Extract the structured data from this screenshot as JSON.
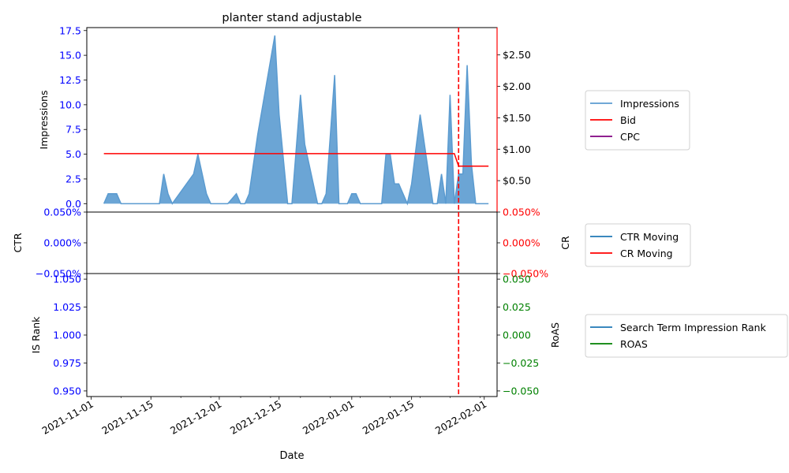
{
  "chart_data": [
    {
      "type": "area",
      "title": "planter stand adjustable",
      "xlabel": "Date",
      "ylabel": "Impressions",
      "ylabel_right": "",
      "xlim": [
        "2021-10-31",
        "2022-02-04"
      ],
      "ylim": [
        -0.85,
        17.8
      ],
      "ylim_right": [
        0,
        2.935
      ],
      "yticks": [
        {
          "value": 0,
          "label": "0.0"
        },
        {
          "value": 2.5,
          "label": "2.5"
        },
        {
          "value": 5,
          "label": "5.0"
        },
        {
          "value": 7.5,
          "label": "7.5"
        },
        {
          "value": 10,
          "label": "10.0"
        },
        {
          "value": 12.5,
          "label": "12.5"
        },
        {
          "value": 15,
          "label": "15.0"
        },
        {
          "value": 17.5,
          "label": "17.5"
        }
      ],
      "yticks_right": [
        {
          "value": 0.5,
          "label": "$0.50"
        },
        {
          "value": 1.0,
          "label": "$1.00"
        },
        {
          "value": 1.5,
          "label": "$1.50"
        },
        {
          "value": 2.0,
          "label": "$2.00"
        },
        {
          "value": 2.5,
          "label": "$2.50"
        }
      ],
      "series": [
        {
          "name": "Impressions",
          "color": "#5b9bd0",
          "axis": "left",
          "points": [
            [
              "2021-11-04",
              0
            ],
            [
              "2021-11-05",
              1
            ],
            [
              "2021-11-06",
              1
            ],
            [
              "2021-11-07",
              1
            ],
            [
              "2021-11-08",
              0
            ],
            [
              "2021-11-09",
              0
            ],
            [
              "2021-11-10",
              0
            ],
            [
              "2021-11-11",
              0
            ],
            [
              "2021-11-12",
              0
            ],
            [
              "2021-11-13",
              0
            ],
            [
              "2021-11-14",
              0
            ],
            [
              "2021-11-15",
              0
            ],
            [
              "2021-11-16",
              0
            ],
            [
              "2021-11-17",
              0
            ],
            [
              "2021-11-18",
              3
            ],
            [
              "2021-11-19",
              1
            ],
            [
              "2021-11-20",
              0
            ],
            [
              "2021-11-25",
              3
            ],
            [
              "2021-11-26",
              5
            ],
            [
              "2021-11-27",
              3
            ],
            [
              "2021-11-28",
              1
            ],
            [
              "2021-11-29",
              0
            ],
            [
              "2021-11-30",
              0
            ],
            [
              "2021-12-01",
              0
            ],
            [
              "2021-12-02",
              0
            ],
            [
              "2021-12-03",
              0
            ],
            [
              "2021-12-05",
              1
            ],
            [
              "2021-12-06",
              0
            ],
            [
              "2021-12-07",
              0
            ],
            [
              "2021-12-08",
              1
            ],
            [
              "2021-12-10",
              7
            ],
            [
              "2021-12-14",
              17
            ],
            [
              "2021-12-15",
              9
            ],
            [
              "2021-12-17",
              0
            ],
            [
              "2021-12-18",
              0
            ],
            [
              "2021-12-20",
              11
            ],
            [
              "2021-12-21",
              6
            ],
            [
              "2021-12-24",
              0
            ],
            [
              "2021-12-25",
              0
            ],
            [
              "2021-12-26",
              1
            ],
            [
              "2021-12-28",
              13
            ],
            [
              "2021-12-29",
              0
            ],
            [
              "2021-12-30",
              0
            ],
            [
              "2021-12-31",
              0
            ],
            [
              "2022-01-01",
              1
            ],
            [
              "2022-01-02",
              1
            ],
            [
              "2022-01-03",
              0
            ],
            [
              "2022-01-04",
              0
            ],
            [
              "2022-01-05",
              0
            ],
            [
              "2022-01-06",
              0
            ],
            [
              "2022-01-07",
              0
            ],
            [
              "2022-01-08",
              0
            ],
            [
              "2022-01-09",
              5
            ],
            [
              "2022-01-10",
              5
            ],
            [
              "2022-01-11",
              2
            ],
            [
              "2022-01-12",
              2
            ],
            [
              "2022-01-14",
              0
            ],
            [
              "2022-01-15",
              2
            ],
            [
              "2022-01-17",
              9
            ],
            [
              "2022-01-20",
              0
            ],
            [
              "2022-01-21",
              0
            ],
            [
              "2022-01-22",
              3
            ],
            [
              "2022-01-23",
              0
            ],
            [
              "2022-01-24",
              11
            ],
            [
              "2022-01-25",
              0
            ],
            [
              "2022-01-26",
              3
            ],
            [
              "2022-01-27",
              3
            ],
            [
              "2022-01-28",
              14
            ],
            [
              "2022-01-29",
              4
            ],
            [
              "2022-01-30",
              0
            ],
            [
              "2022-01-31",
              0
            ],
            [
              "2022-02-01",
              0
            ],
            [
              "2022-02-02",
              0
            ]
          ]
        },
        {
          "name": "Bid",
          "color": "#ff0000",
          "axis": "right",
          "points": [
            [
              "2021-11-04",
              0.93
            ],
            [
              "2022-01-25",
              0.93
            ],
            [
              "2022-01-26",
              0.73
            ],
            [
              "2022-02-02",
              0.73
            ]
          ]
        },
        {
          "name": "CPC",
          "color": "#800080",
          "axis": "right",
          "points": []
        }
      ],
      "vline": {
        "x": "2022-01-26",
        "color": "#ff0000",
        "style": "dashed"
      },
      "legend_placement": "outside-right"
    },
    {
      "type": "line",
      "title": "",
      "ylabel": "CTR",
      "ylabel_right": "CR",
      "ylim": [
        -0.0005,
        0.0005
      ],
      "yticks": [
        {
          "value": -0.0005,
          "label": "−0.050%"
        },
        {
          "value": 0,
          "label": "0.000%"
        },
        {
          "value": 0.0005,
          "label": "0.050%"
        }
      ],
      "yticks_right": [
        {
          "value": -0.0005,
          "label": "−0.050%"
        },
        {
          "value": 0,
          "label": "0.000%"
        },
        {
          "value": 0.0005,
          "label": "0.050%"
        }
      ],
      "series": [
        {
          "name": "CTR Moving",
          "color": "#1f77b4",
          "points": []
        },
        {
          "name": "CR Moving",
          "color": "#ff0000",
          "points": []
        }
      ],
      "legend_placement": "outside-right"
    },
    {
      "type": "line",
      "title": "",
      "ylabel": "IS Rank",
      "ylabel_right": "RoAS",
      "ylim": [
        0.945,
        1.055
      ],
      "ylim_right": [
        -0.055,
        0.055
      ],
      "yticks": [
        {
          "value": 0.95,
          "label": "0.950"
        },
        {
          "value": 0.975,
          "label": "0.975"
        },
        {
          "value": 1.0,
          "label": "1.000"
        },
        {
          "value": 1.025,
          "label": "1.025"
        },
        {
          "value": 1.05,
          "label": "1.050"
        }
      ],
      "yticks_right": [
        {
          "value": -0.05,
          "label": "−0.050"
        },
        {
          "value": -0.025,
          "label": "−0.025"
        },
        {
          "value": 0,
          "label": "0.000"
        },
        {
          "value": 0.025,
          "label": "0.025"
        },
        {
          "value": 0.05,
          "label": "0.050"
        }
      ],
      "xticks": [
        {
          "value": "2021-11-01",
          "label": "2021-11-01"
        },
        {
          "value": "2021-11-15",
          "label": "2021-11-15"
        },
        {
          "value": "2021-12-01",
          "label": "2021-12-01"
        },
        {
          "value": "2021-12-15",
          "label": "2021-12-15"
        },
        {
          "value": "2022-01-01",
          "label": "2022-01-01"
        },
        {
          "value": "2022-01-15",
          "label": "2022-01-15"
        },
        {
          "value": "2022-02-01",
          "label": "2022-02-01"
        }
      ],
      "series": [
        {
          "name": "Search Term Impression Rank",
          "color": "#1f77b4",
          "points": []
        },
        {
          "name": "ROAS",
          "color": "#008000",
          "points": []
        }
      ],
      "legend_placement": "outside-right"
    }
  ],
  "colors": {
    "left_axis_ticks": "#0000ff",
    "right_axis_ticks_top": "#000000",
    "right_axis_ticks_middle": "#ff0000",
    "right_axis_ticks_bottom": "#008000",
    "right_spine_top": "#ff0000"
  }
}
